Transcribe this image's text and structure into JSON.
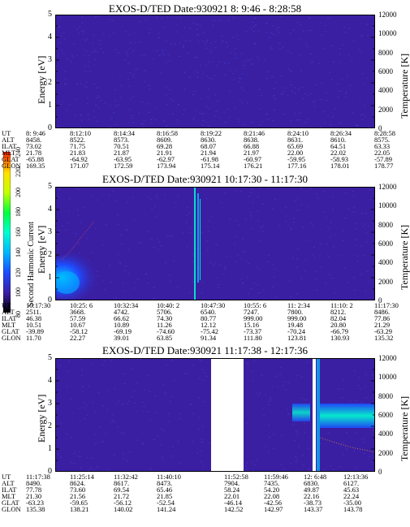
{
  "colorbar": {
    "label": "Second Harmonic Current",
    "ticks": [
      "80",
      "100",
      "120",
      "140",
      "160",
      "180",
      "200",
      "220",
      "240"
    ],
    "colors": [
      "#000000",
      "#3a1fa3",
      "#1e4cff",
      "#00b4ff",
      "#00ffd0",
      "#00ff40",
      "#c8ff00",
      "#ffe000",
      "#ff2000"
    ]
  },
  "ephemeris_labels": [
    "UT",
    "ALT",
    "ILAT",
    "MLT",
    "GLAT",
    "GLON"
  ],
  "chart_data": [
    {
      "type": "heatmap",
      "title": "EXOS-D/TED   Date:930921   8: 9:46 - 8:28:58",
      "ylabel": "Energy [eV]",
      "y2label": "Temperature [K]",
      "ylim": [
        0,
        5
      ],
      "y2lim": [
        0,
        12000
      ],
      "yticks": [
        "0",
        "1",
        "2",
        "3",
        "4",
        "5"
      ],
      "y2ticks": [
        "0",
        "2000",
        "4000",
        "6000",
        "8000",
        "10000",
        "12000"
      ],
      "columns": [
        {
          "UT": "8: 9:46",
          "ALT": "8458.",
          "ILAT": "73.02",
          "MLT": "21.78",
          "GLAT": "-65.88",
          "GLON": "169.35"
        },
        {
          "UT": "8:12:10",
          "ALT": "8522.",
          "ILAT": "71.75",
          "MLT": "21.83",
          "GLAT": "-64.92",
          "GLON": "171.07"
        },
        {
          "UT": "8:14:34",
          "ALT": "8573.",
          "ILAT": "70.51",
          "MLT": "21.87",
          "GLAT": "-63.95",
          "GLON": "172.59"
        },
        {
          "UT": "8:16:58",
          "ALT": "8609.",
          "ILAT": "69.28",
          "MLT": "21.91",
          "GLAT": "-62.97",
          "GLON": "173.94"
        },
        {
          "UT": "8:19:22",
          "ALT": "8630.",
          "ILAT": "68.07",
          "MLT": "21.94",
          "GLAT": "-61.98",
          "GLON": "175.14"
        },
        {
          "UT": "8:21:46",
          "ALT": "8638.",
          "ILAT": "66.88",
          "MLT": "21.97",
          "GLAT": "-60.97",
          "GLON": "176.21"
        },
        {
          "UT": "8:24:10",
          "ALT": "8631.",
          "ILAT": "65.69",
          "MLT": "22.00",
          "GLAT": "-59.95",
          "GLON": "177.16"
        },
        {
          "UT": "8:26:34",
          "ALT": "8610.",
          "ILAT": "64.51",
          "MLT": "22.02",
          "GLAT": "-58.93",
          "GLON": "178.01"
        },
        {
          "UT": "8:28:58",
          "ALT": "8575.",
          "ILAT": "63.33",
          "MLT": "22.05",
          "GLAT": "-57.89",
          "GLON": "178.77"
        }
      ]
    },
    {
      "type": "heatmap",
      "title": "EXOS-D/TED   Date:930921   10:17:30 - 11:17:30",
      "ylabel": "Energy [eV]",
      "y2label": "Temperature [K]",
      "ylim": [
        0,
        5
      ],
      "y2lim": [
        0,
        12000
      ],
      "yticks": [
        "0",
        "1",
        "2",
        "3",
        "4",
        "5"
      ],
      "y2ticks": [
        "0",
        "2000",
        "4000",
        "6000",
        "8000",
        "10000",
        "12000"
      ],
      "columns": [
        {
          "UT": "10:17:30",
          "ALT": "2511.",
          "ILAT": "46.38",
          "MLT": "10.51",
          "GLAT": "-39.89",
          "GLON": "11.70"
        },
        {
          "UT": "10:25: 6",
          "ALT": "3668.",
          "ILAT": "57.59",
          "MLT": "10.67",
          "GLAT": "-58.12",
          "GLON": "22.27"
        },
        {
          "UT": "10:32:34",
          "ALT": "4742.",
          "ILAT": "66.62",
          "MLT": "10.89",
          "GLAT": "-69.19",
          "GLON": "39.01"
        },
        {
          "UT": "10:40: 2",
          "ALT": "5706.",
          "ILAT": "74.30",
          "MLT": "11.26",
          "GLAT": "-74.60",
          "GLON": "63.85"
        },
        {
          "UT": "10:47:30",
          "ALT": "6540.",
          "ILAT": "80.77",
          "MLT": "12.12",
          "GLAT": "-75.42",
          "GLON": "91.34"
        },
        {
          "UT": "10:55: 6",
          "ALT": "7247.",
          "ILAT": "999.00",
          "MLT": "15.16",
          "GLAT": "-73.37",
          "GLON": "111.80"
        },
        {
          "UT": "11: 2:34",
          "ALT": "7800.",
          "ILAT": "999.00",
          "MLT": "19.48",
          "GLAT": "-70.24",
          "GLON": "123.81"
        },
        {
          "UT": "11:10: 2",
          "ALT": "8212.",
          "ILAT": "82.04",
          "MLT": "20.80",
          "GLAT": "-66.79",
          "GLON": "130.93"
        },
        {
          "UT": "11:17:30",
          "ALT": "8486.",
          "ILAT": "77.86",
          "MLT": "21.29",
          "GLAT": "-63.29",
          "GLON": "135.32"
        }
      ]
    },
    {
      "type": "heatmap",
      "title": "EXOS-D/TED   Date:930921   11:17:38 - 12:17:36",
      "ylabel": "Energy [eV]",
      "y2label": "Temperature [K]",
      "ylim": [
        0,
        5
      ],
      "y2lim": [
        0,
        12000
      ],
      "yticks": [
        "0",
        "1",
        "2",
        "3",
        "4",
        "5"
      ],
      "y2ticks": [
        "0",
        "2000",
        "4000",
        "6000",
        "8000",
        "10000",
        "12000"
      ],
      "columns": [
        {
          "UT": "11:17:38",
          "ALT": "8490.",
          "ILAT": "77.78",
          "MLT": "21.30",
          "GLAT": "-63.23",
          "GLON": "135.38"
        },
        {
          "UT": "11:25:14",
          "ALT": "8624.",
          "ILAT": "73.60",
          "MLT": "21.56",
          "GLAT": "-59.65",
          "GLON": "138.21"
        },
        {
          "UT": "11:32:42",
          "ALT": "8617.",
          "ILAT": "69.54",
          "MLT": "21.72",
          "GLAT": "-56.12",
          "GLON": "140.02"
        },
        {
          "UT": "11:40:10",
          "ALT": "8473.",
          "ILAT": "65.46",
          "MLT": "21.85",
          "GLAT": "-52.54",
          "GLON": "141.24"
        },
        {
          "UT": "11:52:58",
          "ALT": "7904.",
          "ILAT": "58.24",
          "MLT": "22.01",
          "GLAT": "-46.14",
          "GLON": "142.52"
        },
        {
          "UT": "11:59:46",
          "ALT": "7435.",
          "ILAT": "54.20",
          "MLT": "22.08",
          "GLAT": "-42.56",
          "GLON": "142.97"
        },
        {
          "UT": "12: 6:48",
          "ALT": "6830.",
          "ILAT": "49.87",
          "MLT": "22.16",
          "GLAT": "-38.73",
          "GLON": "143.37"
        },
        {
          "UT": "12:13:36",
          "ALT": "6127.",
          "ILAT": "45.63",
          "MLT": "22.24",
          "GLAT": "-35.00",
          "GLON": "143.78"
        }
      ]
    }
  ]
}
